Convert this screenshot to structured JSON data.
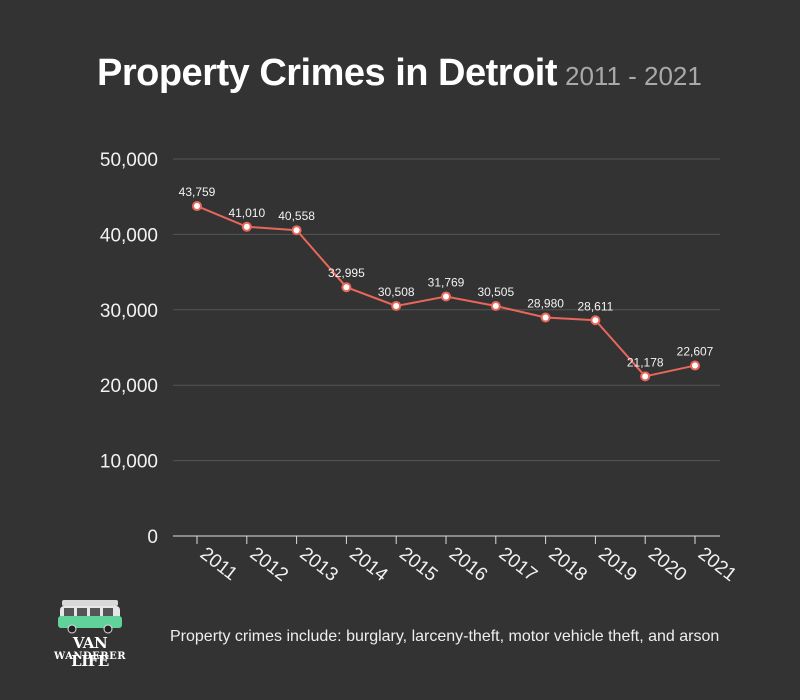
{
  "title": "Property Crimes in Detroit",
  "subtitle": "2011 - 2021",
  "footnote": "Property crimes include: burglary, larceny-theft, motor vehicle theft, and arson",
  "logo": {
    "line1": "VAN LIFE",
    "line2": "WANDERER"
  },
  "colors": {
    "background": "#333333",
    "line": "#e8675a",
    "grid": "#555555",
    "text": "#f2f2f2"
  },
  "chart_data": {
    "type": "line",
    "categories": [
      "2011",
      "2012",
      "2013",
      "2014",
      "2015",
      "2016",
      "2017",
      "2018",
      "2019",
      "2020",
      "2021"
    ],
    "values": [
      43759,
      41010,
      40558,
      32995,
      30508,
      31769,
      30505,
      28980,
      28611,
      21178,
      22607
    ],
    "data_labels": [
      "43,759",
      "41,010",
      "40,558",
      "32,995",
      "30,508",
      "31,769",
      "30,505",
      "28,980",
      "28,611",
      "21,178",
      "22,607"
    ],
    "y_ticks": [
      "0",
      "10,000",
      "20,000",
      "30,000",
      "40,000",
      "50,000"
    ],
    "ylim": [
      0,
      50000
    ],
    "grid": true,
    "legend": "none"
  }
}
